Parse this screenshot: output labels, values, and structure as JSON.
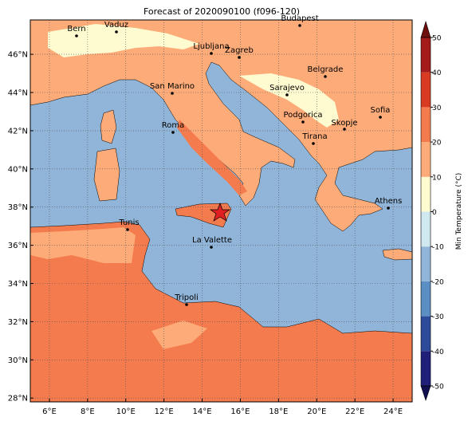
{
  "map": {
    "title": "Forecast of 2020090100 (f096-120)",
    "xlim": [
      5,
      25
    ],
    "ylim": [
      27.8,
      47.8
    ],
    "xticks": [
      {
        "value": 6,
        "label": "6°E"
      },
      {
        "value": 8,
        "label": "8°E"
      },
      {
        "value": 10,
        "label": "10°E"
      },
      {
        "value": 12,
        "label": "12°E"
      },
      {
        "value": 14,
        "label": "14°E"
      },
      {
        "value": 16,
        "label": "16°E"
      },
      {
        "value": 18,
        "label": "18°E"
      },
      {
        "value": 20,
        "label": "20°E"
      },
      {
        "value": 22,
        "label": "22°E"
      },
      {
        "value": 24,
        "label": "24°E"
      }
    ],
    "yticks": [
      {
        "value": 28,
        "label": "28°N"
      },
      {
        "value": 30,
        "label": "30°N"
      },
      {
        "value": 32,
        "label": "32°N"
      },
      {
        "value": 34,
        "label": "34°N"
      },
      {
        "value": 36,
        "label": "36°N"
      },
      {
        "value": 38,
        "label": "38°N"
      },
      {
        "value": 40,
        "label": "40°N"
      },
      {
        "value": 42,
        "label": "42°N"
      },
      {
        "value": 44,
        "label": "44°N"
      },
      {
        "value": 46,
        "label": "46°N"
      }
    ],
    "grid": true,
    "cities": [
      "Bern",
      "Vaduz",
      "Budapest",
      "Ljubljana",
      "Zagreb",
      "Belgrade",
      "San Marino",
      "Sarajevo",
      "Sofia",
      "Podgorica",
      "Skopje",
      "Roma",
      "Tirana",
      "Athens",
      "Tunis",
      "La Valette",
      "Tripoli"
    ],
    "colorbar": {
      "label": "Min Temperature (°C)",
      "lim": [
        -50,
        50
      ],
      "ticks": [
        -50,
        -40,
        -30,
        -20,
        -10,
        0,
        10,
        20,
        30,
        40,
        50
      ],
      "colors": [
        "#1f1f7a",
        "#2d4a9b",
        "#5b8ec3",
        "#91b5d8",
        "#d0e8f0",
        "#fffbd0",
        "#fdab78",
        "#f47b4d",
        "#d93a22",
        "#a51a1a"
      ],
      "under": "#101050",
      "over": "#6e0f0f"
    }
  }
}
